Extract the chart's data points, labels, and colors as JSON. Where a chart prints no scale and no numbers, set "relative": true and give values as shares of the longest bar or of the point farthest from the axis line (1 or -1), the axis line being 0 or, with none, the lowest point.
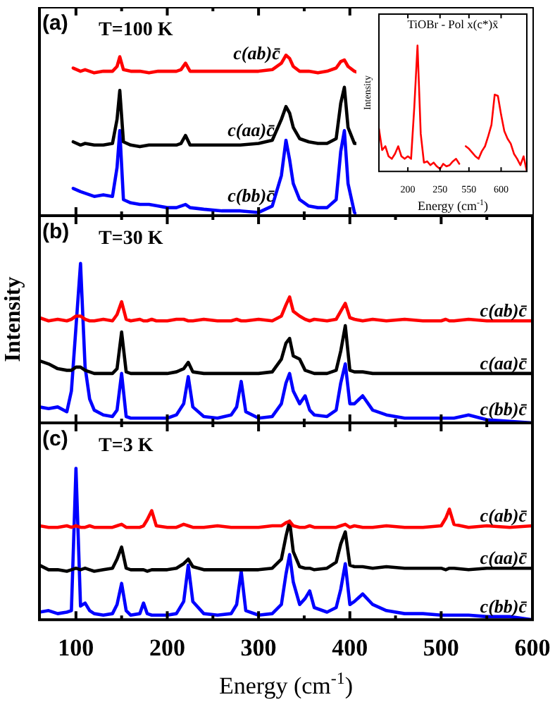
{
  "chart_data": [
    {
      "type": "line",
      "title": "(a)",
      "annotations": [
        "T=100 K"
      ],
      "relative": true,
      "tick_labels": false,
      "xlim": [
        60,
        600
      ],
      "xticks": [
        100,
        {
          "value": 150,
          "label": null
        },
        200,
        {
          "value": 250,
          "label": null
        },
        300,
        {
          "value": 350,
          "label": null
        },
        400,
        {
          "value": 450,
          "label": null
        },
        500,
        {
          "value": 550,
          "label": null
        },
        600
      ],
      "x": [
        97,
        105,
        110,
        120,
        130,
        140,
        145,
        148,
        152,
        160,
        170,
        180,
        190,
        200,
        210,
        215,
        220,
        225,
        240,
        260,
        280,
        300,
        315,
        325,
        330,
        334,
        338,
        345,
        355,
        365,
        375,
        385,
        390,
        394,
        398,
        405,
        410
      ],
      "series": [
        {
          "name": "c(ab)c̄",
          "color": "#ff0000",
          "values": [
            0.92,
            0.9,
            0.91,
            0.89,
            0.9,
            0.9,
            0.93,
            0.99,
            0.91,
            0.9,
            0.9,
            0.89,
            0.9,
            0.9,
            0.9,
            0.91,
            0.95,
            0.9,
            0.9,
            0.9,
            0.9,
            0.9,
            0.91,
            0.95,
            1,
            0.98,
            0.93,
            0.9,
            0.9,
            0.89,
            0.9,
            0.92,
            0.96,
            0.97,
            0.93,
            0.9,
            0.89
          ]
        },
        {
          "name": "c(aa)c̄",
          "color": "#000000",
          "values": [
            0.46,
            0.44,
            0.45,
            0.44,
            0.44,
            0.45,
            0.6,
            0.78,
            0.46,
            0.44,
            0.43,
            0.44,
            0.44,
            0.44,
            0.44,
            0.45,
            0.5,
            0.44,
            0.44,
            0.44,
            0.44,
            0.45,
            0.47,
            0.6,
            0.68,
            0.64,
            0.55,
            0.48,
            0.46,
            0.45,
            0.45,
            0.48,
            0.7,
            0.8,
            0.55,
            0.45,
            0.45
          ]
        },
        {
          "name": "c(bb)c̄",
          "color": "#0000ff",
          "values": [
            0.17,
            0.15,
            0.14,
            0.12,
            0.13,
            0.12,
            0.3,
            0.53,
            0.1,
            0.08,
            0.07,
            0.07,
            0.06,
            0.05,
            0.05,
            0.06,
            0.07,
            0.05,
            0.04,
            0.03,
            0.03,
            0.02,
            0.06,
            0.25,
            0.47,
            0.35,
            0.2,
            0.1,
            0.06,
            0.05,
            0.05,
            0.1,
            0.4,
            0.53,
            0.2,
            0.02,
            0
          ]
        }
      ]
    },
    {
      "type": "line",
      "title": "TiOBr - Pol x(c*)x̄",
      "xlabel": "Energy (cm$^{-1}$)",
      "ylabel": "Intensity",
      "relative": true,
      "tick_labels": "x",
      "categories": [
        null,
        null,
        null,
        null,
        null,
        null,
        null,
        null,
        null,
        "200",
        null,
        null,
        null,
        null,
        null,
        null,
        null,
        null,
        null,
        "250",
        null,
        null,
        null,
        null,
        null,
        null,
        null,
        null,
        "550",
        null,
        null,
        null,
        null,
        null,
        null,
        null,
        null,
        null,
        "600",
        null,
        null,
        null,
        null,
        null,
        null,
        null,
        null
      ],
      "series": [
        {
          "color": "#ff0000",
          "values": [
            0.34,
            0.17,
            0.2,
            0.12,
            0.1,
            0.14,
            0.2,
            0.12,
            0.1,
            0.12,
            0.1,
            0.51,
            1,
            0.3,
            0.07,
            0.08,
            0.05,
            0.07,
            0.04,
            0.02,
            0.06,
            0.04,
            0.05,
            0.08,
            0.1,
            0.06,
            null,
            0.2,
            0.18,
            0.15,
            0.12,
            0.1,
            0.16,
            0.2,
            0.28,
            0.37,
            0.61,
            0.6,
            0.45,
            0.32,
            0.26,
            0.22,
            0.14,
            0.1,
            0.05,
            0.12,
            0
          ]
        }
      ]
    },
    {
      "type": "line",
      "title": "(b)",
      "annotations": [
        "T=30 K"
      ],
      "ylabel": "Intensity",
      "relative": true,
      "tick_labels": false,
      "xlim": [
        60,
        600
      ],
      "xticks": [
        100,
        {
          "value": 150,
          "label": null
        },
        200,
        {
          "value": 250,
          "label": null
        },
        300,
        {
          "value": 350,
          "label": null
        },
        400,
        {
          "value": 450,
          "label": null
        },
        500,
        {
          "value": 550,
          "label": null
        },
        600
      ],
      "x": [
        60,
        70,
        80,
        90,
        95,
        100,
        105,
        110,
        115,
        120,
        130,
        140,
        145,
        150,
        155,
        160,
        170,
        174,
        178,
        183,
        188,
        200,
        210,
        218,
        223,
        228,
        240,
        255,
        270,
        276,
        281,
        286,
        300,
        315,
        325,
        330,
        334,
        338,
        345,
        351,
        356,
        361,
        375,
        385,
        390,
        395,
        400,
        405,
        414,
        425,
        440,
        460,
        480,
        500,
        505,
        509,
        514,
        530,
        550,
        575,
        600
      ],
      "series": [
        {
          "name": "c(ab)c̄",
          "color": "#ff0000",
          "values": [
            0.66,
            0.64,
            0.65,
            0.64,
            0.65,
            0.67,
            0.67,
            0.65,
            0.64,
            0.64,
            0.65,
            0.64,
            0.68,
            0.76,
            0.65,
            0.64,
            0.65,
            0.64,
            0.64,
            0.65,
            0.64,
            0.64,
            0.65,
            0.65,
            0.64,
            0.64,
            0.65,
            0.64,
            0.64,
            0.65,
            0.64,
            0.64,
            0.65,
            0.64,
            0.67,
            0.74,
            0.79,
            0.7,
            0.67,
            0.65,
            0.64,
            0.65,
            0.64,
            0.65,
            0.7,
            0.75,
            0.66,
            0.65,
            0.64,
            0.65,
            0.64,
            0.65,
            0.64,
            0.64,
            0.65,
            0.64,
            0.64,
            0.65,
            0.64,
            0.64,
            0.64
          ]
        },
        {
          "name": "c(aa)c̄",
          "color": "#000000",
          "values": [
            0.39,
            0.37,
            0.34,
            0.33,
            0.33,
            0.35,
            0.35,
            0.33,
            0.32,
            0.31,
            0.31,
            0.31,
            0.34,
            0.57,
            0.32,
            0.31,
            0.31,
            0.31,
            0.31,
            0.31,
            0.31,
            0.31,
            0.32,
            0.34,
            0.38,
            0.32,
            0.31,
            0.31,
            0.31,
            0.31,
            0.31,
            0.31,
            0.31,
            0.32,
            0.4,
            0.5,
            0.53,
            0.42,
            0.4,
            0.33,
            0.32,
            0.31,
            0.31,
            0.33,
            0.45,
            0.61,
            0.33,
            0.32,
            0.32,
            0.31,
            0.31,
            0.31,
            0.31,
            0.31,
            0.31,
            0.31,
            0.31,
            0.31,
            0.31,
            0.31,
            0.31
          ]
        },
        {
          "name": "c(bb)c̄",
          "color": "#0000ff",
          "values": [
            0.1,
            0.09,
            0.1,
            0.07,
            0.2,
            0.6,
            1,
            0.35,
            0.15,
            0.08,
            0.05,
            0.04,
            0.08,
            0.31,
            0.04,
            0.03,
            0.03,
            0.03,
            0.03,
            0.03,
            0.03,
            0.03,
            0.05,
            0.12,
            0.29,
            0.1,
            0.04,
            0.03,
            0.05,
            0.1,
            0.26,
            0.07,
            0.03,
            0.04,
            0.12,
            0.25,
            0.31,
            0.2,
            0.12,
            0.17,
            0.08,
            0.05,
            0.04,
            0.08,
            0.25,
            0.37,
            0.12,
            0.12,
            0.17,
            0.08,
            0.05,
            0.03,
            0.03,
            0.03,
            0.03,
            0.03,
            0.03,
            0.05,
            0.02,
            0.01,
            0
          ]
        }
      ]
    },
    {
      "type": "line",
      "title": "(c)",
      "annotations": [
        "T=3 K"
      ],
      "xlabel": "Energy (cm$^{-1}$)",
      "relative": true,
      "tick_labels": "x",
      "xlim": [
        60,
        600
      ],
      "xticks": [
        100,
        {
          "value": 150,
          "label": null
        },
        200,
        {
          "value": 250,
          "label": null
        },
        300,
        {
          "value": 350,
          "label": null
        },
        400,
        {
          "value": 450,
          "label": null
        },
        500,
        {
          "value": 550,
          "label": null
        },
        600
      ],
      "x": [
        60,
        70,
        80,
        90,
        95,
        100,
        105,
        110,
        115,
        120,
        130,
        140,
        145,
        150,
        155,
        160,
        170,
        174,
        178,
        183,
        188,
        200,
        210,
        218,
        223,
        228,
        240,
        255,
        270,
        276,
        281,
        286,
        300,
        315,
        325,
        330,
        334,
        338,
        345,
        351,
        356,
        361,
        375,
        385,
        390,
        395,
        400,
        405,
        414,
        425,
        440,
        460,
        480,
        500,
        505,
        509,
        514,
        530,
        550,
        575,
        600
      ],
      "series": [
        {
          "name": "c(ab)c̄",
          "color": "#ff0000",
          "values": [
            0.62,
            0.61,
            0.61,
            0.62,
            0.61,
            0.62,
            0.61,
            0.61,
            0.62,
            0.61,
            0.61,
            0.61,
            0.62,
            0.63,
            0.61,
            0.61,
            0.61,
            0.62,
            0.66,
            0.72,
            0.62,
            0.61,
            0.61,
            0.63,
            0.62,
            0.61,
            0.61,
            0.62,
            0.61,
            0.61,
            0.61,
            0.61,
            0.61,
            0.62,
            0.62,
            0.64,
            0.65,
            0.62,
            0.61,
            0.61,
            0.62,
            0.61,
            0.61,
            0.61,
            0.62,
            0.63,
            0.61,
            0.62,
            0.61,
            0.61,
            0.62,
            0.61,
            0.61,
            0.62,
            0.67,
            0.73,
            0.63,
            0.61,
            0.62,
            0.61,
            0.62
          ]
        },
        {
          "name": "c(aa)c̄",
          "color": "#000000",
          "values": [
            0.36,
            0.33,
            0.33,
            0.32,
            0.33,
            0.34,
            0.33,
            0.34,
            0.33,
            0.32,
            0.33,
            0.34,
            0.4,
            0.48,
            0.34,
            0.33,
            0.33,
            0.33,
            0.32,
            0.33,
            0.33,
            0.33,
            0.34,
            0.37,
            0.4,
            0.35,
            0.33,
            0.33,
            0.33,
            0.33,
            0.33,
            0.33,
            0.33,
            0.34,
            0.4,
            0.55,
            0.65,
            0.45,
            0.35,
            0.34,
            0.34,
            0.33,
            0.34,
            0.38,
            0.5,
            0.58,
            0.36,
            0.35,
            0.35,
            0.34,
            0.35,
            0.34,
            0.34,
            0.34,
            0.33,
            0.34,
            0.34,
            0.33,
            0.34,
            0.34,
            0.34
          ]
        },
        {
          "name": "c(bb)c̄",
          "color": "#0000ff",
          "values": [
            0.05,
            0.06,
            0.04,
            0.05,
            0.06,
            1,
            0.09,
            0.11,
            0.06,
            0.04,
            0.03,
            0.04,
            0.1,
            0.24,
            0.06,
            0.03,
            0.04,
            0.11,
            0.04,
            0.03,
            0.03,
            0.03,
            0.04,
            0.12,
            0.36,
            0.12,
            0.04,
            0.03,
            0.04,
            0.1,
            0.32,
            0.06,
            0.03,
            0.04,
            0.1,
            0.3,
            0.43,
            0.25,
            0.1,
            0.14,
            0.19,
            0.08,
            0.05,
            0.08,
            0.2,
            0.37,
            0.1,
            0.12,
            0.17,
            0.1,
            0.06,
            0.04,
            0.04,
            0.03,
            0.03,
            0.03,
            0.03,
            0.03,
            0.02,
            0.02,
            0
          ]
        }
      ]
    }
  ]
}
